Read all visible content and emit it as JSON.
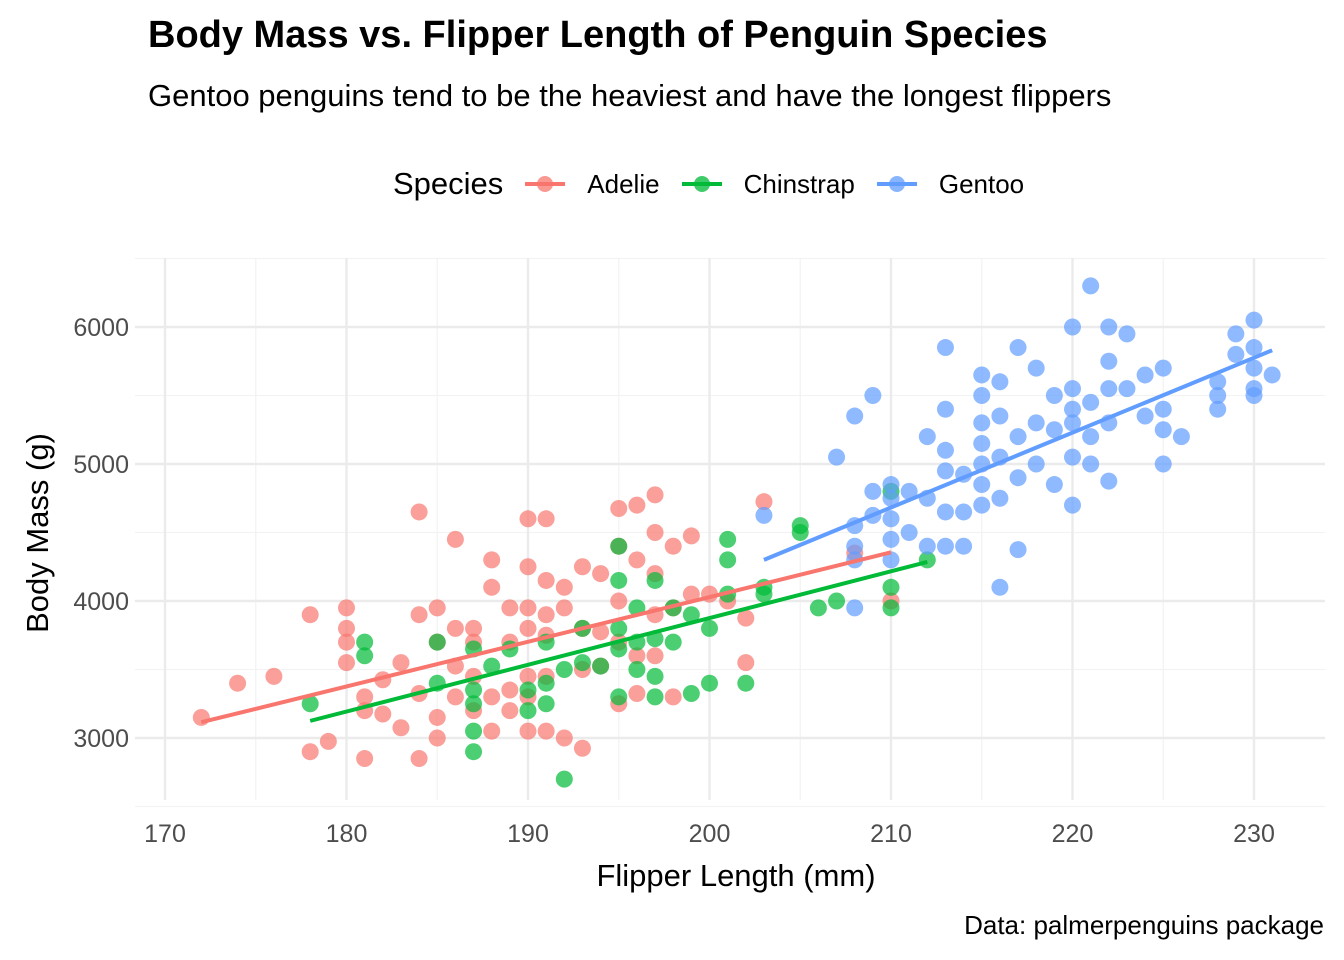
{
  "chart_data": {
    "type": "scatter",
    "title": "Body Mass vs. Flipper Length of Penguin Species",
    "subtitle": "Gentoo penguins tend to be the heaviest and have the longest flippers",
    "xlabel": "Flipper Length (mm)",
    "ylabel": "Body Mass (g)",
    "caption": "Data: palmerpenguins package",
    "legend_title": "Species",
    "legend_position": "top",
    "grid": true,
    "xlim": [
      170,
      232
    ],
    "ylim": [
      2500,
      6500
    ],
    "x_ticks": [
      170,
      180,
      190,
      200,
      210,
      220,
      230
    ],
    "y_ticks": [
      3000,
      4000,
      5000,
      6000
    ],
    "series": [
      {
        "name": "Adelie",
        "color": "#F8766D",
        "trend": {
          "x": [
            172,
            210
          ],
          "y": [
            3115,
            4355
          ]
        },
        "points": [
          [
            172,
            3150
          ],
          [
            174,
            3400
          ],
          [
            176,
            3450
          ],
          [
            178,
            3900
          ],
          [
            178,
            2900
          ],
          [
            179,
            2975
          ],
          [
            180,
            3950
          ],
          [
            180,
            3800
          ],
          [
            180,
            3700
          ],
          [
            180,
            3550
          ],
          [
            181,
            3300
          ],
          [
            181,
            3200
          ],
          [
            181,
            2850
          ],
          [
            182,
            3425
          ],
          [
            182,
            3175
          ],
          [
            183,
            3550
          ],
          [
            183,
            3075
          ],
          [
            184,
            4650
          ],
          [
            184,
            3900
          ],
          [
            184,
            3325
          ],
          [
            184,
            2850
          ],
          [
            185,
            3950
          ],
          [
            185,
            3700
          ],
          [
            185,
            3150
          ],
          [
            185,
            3000
          ],
          [
            186,
            4450
          ],
          [
            186,
            3800
          ],
          [
            186,
            3525
          ],
          [
            186,
            3300
          ],
          [
            187,
            3800
          ],
          [
            187,
            3700
          ],
          [
            187,
            3450
          ],
          [
            187,
            3200
          ],
          [
            188,
            4300
          ],
          [
            188,
            4100
          ],
          [
            188,
            3300
          ],
          [
            188,
            3050
          ],
          [
            189,
            3950
          ],
          [
            189,
            3700
          ],
          [
            189,
            3350
          ],
          [
            189,
            3200
          ],
          [
            190,
            4600
          ],
          [
            190,
            4250
          ],
          [
            190,
            3950
          ],
          [
            190,
            3800
          ],
          [
            190,
            3450
          ],
          [
            190,
            3300
          ],
          [
            190,
            3050
          ],
          [
            191,
            4600
          ],
          [
            191,
            4150
          ],
          [
            191,
            3900
          ],
          [
            191,
            3750
          ],
          [
            191,
            3450
          ],
          [
            191,
            3050
          ],
          [
            192,
            4100
          ],
          [
            192,
            3950
          ],
          [
            192,
            3000
          ],
          [
            193,
            4250
          ],
          [
            193,
            3800
          ],
          [
            193,
            3500
          ],
          [
            193,
            2925
          ],
          [
            194,
            4200
          ],
          [
            194,
            3775
          ],
          [
            194,
            3525
          ],
          [
            195,
            4675
          ],
          [
            195,
            4400
          ],
          [
            195,
            4000
          ],
          [
            195,
            3700
          ],
          [
            195,
            3250
          ],
          [
            196,
            4700
          ],
          [
            196,
            4300
          ],
          [
            196,
            3600
          ],
          [
            196,
            3325
          ],
          [
            197,
            4775
          ],
          [
            197,
            4500
          ],
          [
            197,
            4200
          ],
          [
            197,
            3900
          ],
          [
            197,
            3600
          ],
          [
            198,
            4400
          ],
          [
            198,
            3950
          ],
          [
            198,
            3300
          ],
          [
            199,
            4475
          ],
          [
            199,
            4050
          ],
          [
            200,
            4050
          ],
          [
            201,
            4000
          ],
          [
            202,
            3875
          ],
          [
            202,
            3550
          ],
          [
            203,
            4725
          ],
          [
            208,
            4350
          ],
          [
            210,
            4000
          ]
        ]
      },
      {
        "name": "Chinstrap",
        "color": "#00BA38",
        "trend": {
          "x": [
            178,
            212
          ],
          "y": [
            3125,
            4285
          ]
        },
        "points": [
          [
            178,
            3250
          ],
          [
            181,
            3700
          ],
          [
            181,
            3600
          ],
          [
            185,
            3700
          ],
          [
            185,
            3400
          ],
          [
            187,
            3650
          ],
          [
            187,
            3350
          ],
          [
            187,
            3250
          ],
          [
            187,
            3050
          ],
          [
            187,
            2900
          ],
          [
            188,
            3525
          ],
          [
            189,
            3650
          ],
          [
            190,
            3350
          ],
          [
            190,
            3200
          ],
          [
            191,
            3700
          ],
          [
            191,
            3400
          ],
          [
            191,
            3250
          ],
          [
            192,
            2700
          ],
          [
            192,
            3500
          ],
          [
            193,
            3800
          ],
          [
            193,
            3550
          ],
          [
            194,
            3525
          ],
          [
            195,
            4400
          ],
          [
            195,
            4150
          ],
          [
            195,
            3800
          ],
          [
            195,
            3650
          ],
          [
            195,
            3300
          ],
          [
            196,
            3950
          ],
          [
            196,
            3700
          ],
          [
            196,
            3500
          ],
          [
            197,
            4150
          ],
          [
            197,
            3725
          ],
          [
            197,
            3450
          ],
          [
            197,
            3300
          ],
          [
            198,
            3950
          ],
          [
            198,
            3700
          ],
          [
            199,
            3900
          ],
          [
            199,
            3325
          ],
          [
            200,
            3800
          ],
          [
            200,
            3400
          ],
          [
            201,
            4450
          ],
          [
            201,
            4300
          ],
          [
            201,
            4050
          ],
          [
            202,
            3400
          ],
          [
            203,
            4100
          ],
          [
            203,
            4050
          ],
          [
            205,
            4550
          ],
          [
            205,
            4500
          ],
          [
            206,
            3950
          ],
          [
            207,
            4000
          ],
          [
            210,
            4800
          ],
          [
            210,
            4100
          ],
          [
            210,
            3950
          ],
          [
            212,
            4300
          ]
        ]
      },
      {
        "name": "Gentoo",
        "color": "#619CFF",
        "trend": {
          "x": [
            203,
            231
          ],
          "y": [
            4300,
            5830
          ]
        },
        "points": [
          [
            203,
            4625
          ],
          [
            207,
            5050
          ],
          [
            208,
            5350
          ],
          [
            208,
            4550
          ],
          [
            208,
            4400
          ],
          [
            208,
            4300
          ],
          [
            208,
            3950
          ],
          [
            209,
            5500
          ],
          [
            209,
            4800
          ],
          [
            209,
            4625
          ],
          [
            210,
            4850
          ],
          [
            210,
            4750
          ],
          [
            210,
            4600
          ],
          [
            210,
            4450
          ],
          [
            210,
            4300
          ],
          [
            211,
            4800
          ],
          [
            211,
            4500
          ],
          [
            212,
            5200
          ],
          [
            212,
            4750
          ],
          [
            212,
            4400
          ],
          [
            213,
            5850
          ],
          [
            213,
            5400
          ],
          [
            213,
            5100
          ],
          [
            213,
            4950
          ],
          [
            213,
            4650
          ],
          [
            213,
            4400
          ],
          [
            214,
            4925
          ],
          [
            214,
            4650
          ],
          [
            214,
            4400
          ],
          [
            215,
            5650
          ],
          [
            215,
            5500
          ],
          [
            215,
            5300
          ],
          [
            215,
            5150
          ],
          [
            215,
            5000
          ],
          [
            215,
            4850
          ],
          [
            215,
            4700
          ],
          [
            216,
            5600
          ],
          [
            216,
            5350
          ],
          [
            216,
            5050
          ],
          [
            216,
            4750
          ],
          [
            216,
            4100
          ],
          [
            217,
            5850
          ],
          [
            217,
            5200
          ],
          [
            217,
            4900
          ],
          [
            217,
            4375
          ],
          [
            218,
            5700
          ],
          [
            218,
            5300
          ],
          [
            218,
            5000
          ],
          [
            219,
            5500
          ],
          [
            219,
            5250
          ],
          [
            219,
            4850
          ],
          [
            220,
            6000
          ],
          [
            220,
            5550
          ],
          [
            220,
            5400
          ],
          [
            220,
            5300
          ],
          [
            220,
            5050
          ],
          [
            220,
            4700
          ],
          [
            221,
            6300
          ],
          [
            221,
            5450
          ],
          [
            221,
            5200
          ],
          [
            221,
            5000
          ],
          [
            222,
            6000
          ],
          [
            222,
            5750
          ],
          [
            222,
            5550
          ],
          [
            222,
            5300
          ],
          [
            222,
            4875
          ],
          [
            223,
            5950
          ],
          [
            223,
            5550
          ],
          [
            224,
            5650
          ],
          [
            224,
            5350
          ],
          [
            225,
            5700
          ],
          [
            225,
            5400
          ],
          [
            225,
            5250
          ],
          [
            225,
            5000
          ],
          [
            226,
            5200
          ],
          [
            228,
            5600
          ],
          [
            228,
            5500
          ],
          [
            228,
            5400
          ],
          [
            229,
            5950
          ],
          [
            229,
            5800
          ],
          [
            230,
            6050
          ],
          [
            230,
            5850
          ],
          [
            230,
            5700
          ],
          [
            230,
            5550
          ],
          [
            230,
            5500
          ],
          [
            231,
            5650
          ]
        ]
      }
    ]
  }
}
